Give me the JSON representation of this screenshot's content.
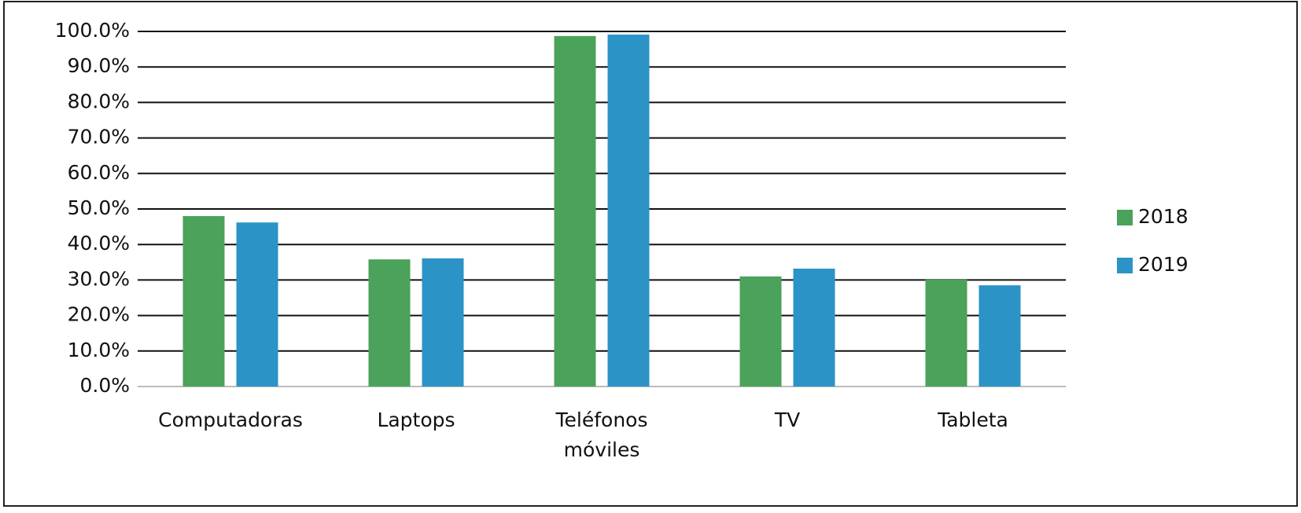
{
  "chart_data": {
    "type": "bar",
    "categories": [
      "Computadoras",
      "Laptops",
      "Teléfonos móviles",
      "TV",
      "Tableta"
    ],
    "series": [
      {
        "name": "2018",
        "color": "#4ba25a",
        "values": [
          48.0,
          35.8,
          98.7,
          31.0,
          30.1
        ]
      },
      {
        "name": "2019",
        "color": "#2b93c6",
        "values": [
          46.2,
          36.1,
          99.1,
          33.2,
          28.5
        ]
      }
    ],
    "ylim": [
      0,
      100
    ],
    "yticks": [
      {
        "value": 0,
        "label": "0.0%"
      },
      {
        "value": 10,
        "label": "10.0%"
      },
      {
        "value": 20,
        "label": "20.0%"
      },
      {
        "value": 30,
        "label": "30.0%"
      },
      {
        "value": 40,
        "label": "40.0%"
      },
      {
        "value": 50,
        "label": "50.0%"
      },
      {
        "value": 60,
        "label": "60.0%"
      },
      {
        "value": 70,
        "label": "70.0%"
      },
      {
        "value": 80,
        "label": "80.0%"
      },
      {
        "value": 90,
        "label": "90.0%"
      },
      {
        "value": 100,
        "label": "100.0%"
      }
    ],
    "grid": true,
    "legend": "right"
  }
}
